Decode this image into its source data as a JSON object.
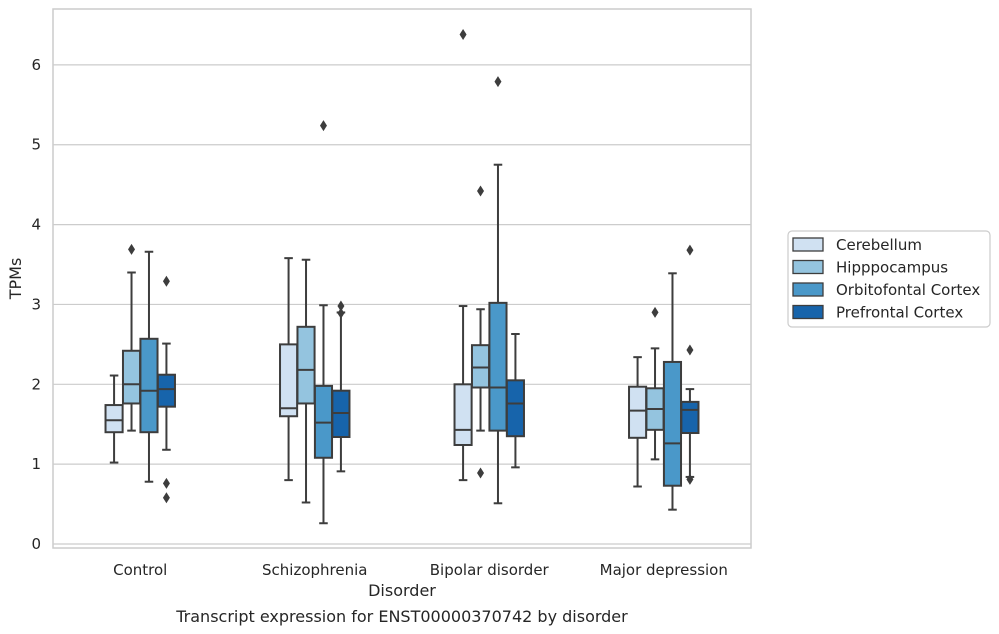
{
  "chart_data": {
    "type": "box",
    "title": "",
    "caption": "Transcript expression for ENST00000370742 by disorder",
    "xlabel": "Disorder",
    "ylabel": "TPMs",
    "ylim": [
      -0.05,
      6.7
    ],
    "yticks": [
      0,
      1,
      2,
      3,
      4,
      5,
      6
    ],
    "grid": "horizontal",
    "legend_position": "right",
    "categories": [
      "Control",
      "Schizophrenia",
      "Bipolar disorder",
      "Major depression"
    ],
    "series": [
      {
        "name": "Cerebellum",
        "color": "#d0e1f2",
        "boxes": [
          {
            "whislo": 1.02,
            "q1": 1.4,
            "med": 1.55,
            "q3": 1.74,
            "whishi": 2.11,
            "fliers": []
          },
          {
            "whislo": 0.8,
            "q1": 1.6,
            "med": 1.7,
            "q3": 2.5,
            "whishi": 3.58,
            "fliers": []
          },
          {
            "whislo": 0.8,
            "q1": 1.24,
            "med": 1.43,
            "q3": 2.0,
            "whishi": 2.98,
            "fliers": [
              6.38
            ]
          },
          {
            "whislo": 0.72,
            "q1": 1.33,
            "med": 1.67,
            "q3": 1.97,
            "whishi": 2.34,
            "fliers": []
          }
        ]
      },
      {
        "name": "Hipppocampus",
        "color": "#94c4df",
        "boxes": [
          {
            "whislo": 1.42,
            "q1": 1.76,
            "med": 2.0,
            "q3": 2.42,
            "whishi": 3.4,
            "fliers": [
              3.69
            ]
          },
          {
            "whislo": 0.52,
            "q1": 1.76,
            "med": 2.18,
            "q3": 2.72,
            "whishi": 3.56,
            "fliers": []
          },
          {
            "whislo": 1.42,
            "q1": 1.96,
            "med": 2.21,
            "q3": 2.49,
            "whishi": 2.94,
            "fliers": [
              4.42,
              0.89
            ]
          },
          {
            "whislo": 1.06,
            "q1": 1.43,
            "med": 1.69,
            "q3": 1.95,
            "whishi": 2.45,
            "fliers": [
              2.9
            ]
          }
        ]
      },
      {
        "name": "Orbitofontal Cortex",
        "color": "#4a98c9",
        "boxes": [
          {
            "whislo": 0.78,
            "q1": 1.4,
            "med": 1.92,
            "q3": 2.57,
            "whishi": 3.66,
            "fliers": []
          },
          {
            "whislo": 0.26,
            "q1": 1.08,
            "med": 1.52,
            "q3": 1.98,
            "whishi": 2.99,
            "fliers": [
              5.24
            ]
          },
          {
            "whislo": 0.51,
            "q1": 1.42,
            "med": 1.96,
            "q3": 3.02,
            "whishi": 4.75,
            "fliers": [
              5.79
            ]
          },
          {
            "whislo": 0.43,
            "q1": 0.73,
            "med": 1.26,
            "q3": 2.28,
            "whishi": 3.39,
            "fliers": []
          }
        ]
      },
      {
        "name": "Prefrontal Cortex",
        "color": "#1764ab",
        "boxes": [
          {
            "whislo": 1.18,
            "q1": 1.72,
            "med": 1.94,
            "q3": 2.12,
            "whishi": 2.51,
            "fliers": [
              3.29,
              0.76,
              0.58
            ]
          },
          {
            "whislo": 0.91,
            "q1": 1.34,
            "med": 1.64,
            "q3": 1.92,
            "whishi": 2.9,
            "fliers": [
              2.98,
              2.89
            ]
          },
          {
            "whislo": 0.96,
            "q1": 1.35,
            "med": 1.76,
            "q3": 2.05,
            "whishi": 2.63,
            "fliers": []
          },
          {
            "whislo": 0.84,
            "q1": 1.39,
            "med": 1.68,
            "q3": 1.78,
            "whishi": 1.94,
            "fliers": [
              3.68,
              2.43,
              0.81
            ]
          }
        ]
      }
    ]
  }
}
